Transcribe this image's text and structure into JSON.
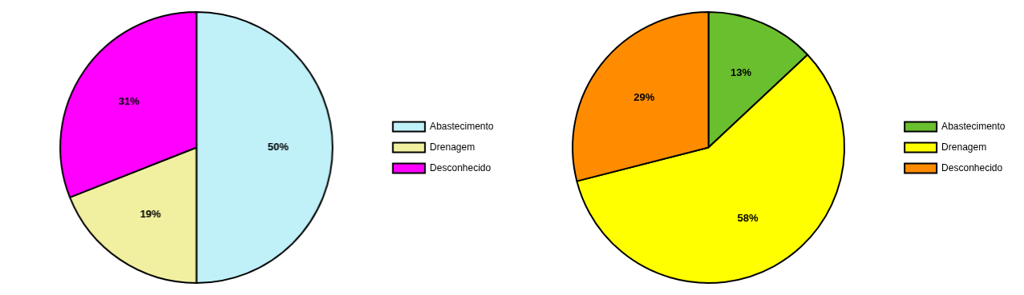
{
  "chart_data": [
    {
      "type": "pie",
      "categories": [
        "Abastecimento",
        "Drenagem",
        "Desconhecido"
      ],
      "values": [
        50,
        19,
        31
      ],
      "value_labels": [
        "50%",
        "19%",
        "31%"
      ],
      "colors": [
        "#c0f0f8",
        "#f0f0a0",
        "#ff00ff"
      ],
      "data_labels": true,
      "legend": "right"
    },
    {
      "type": "pie",
      "categories": [
        "Abastecimento",
        "Drenagem",
        "Desconhecido"
      ],
      "values": [
        13,
        58,
        29
      ],
      "value_labels": [
        "13%",
        "58%",
        "29%"
      ],
      "colors": [
        "#6abf2e",
        "#ffff00",
        "#ff8c00"
      ],
      "data_labels": true,
      "legend": "right"
    }
  ]
}
